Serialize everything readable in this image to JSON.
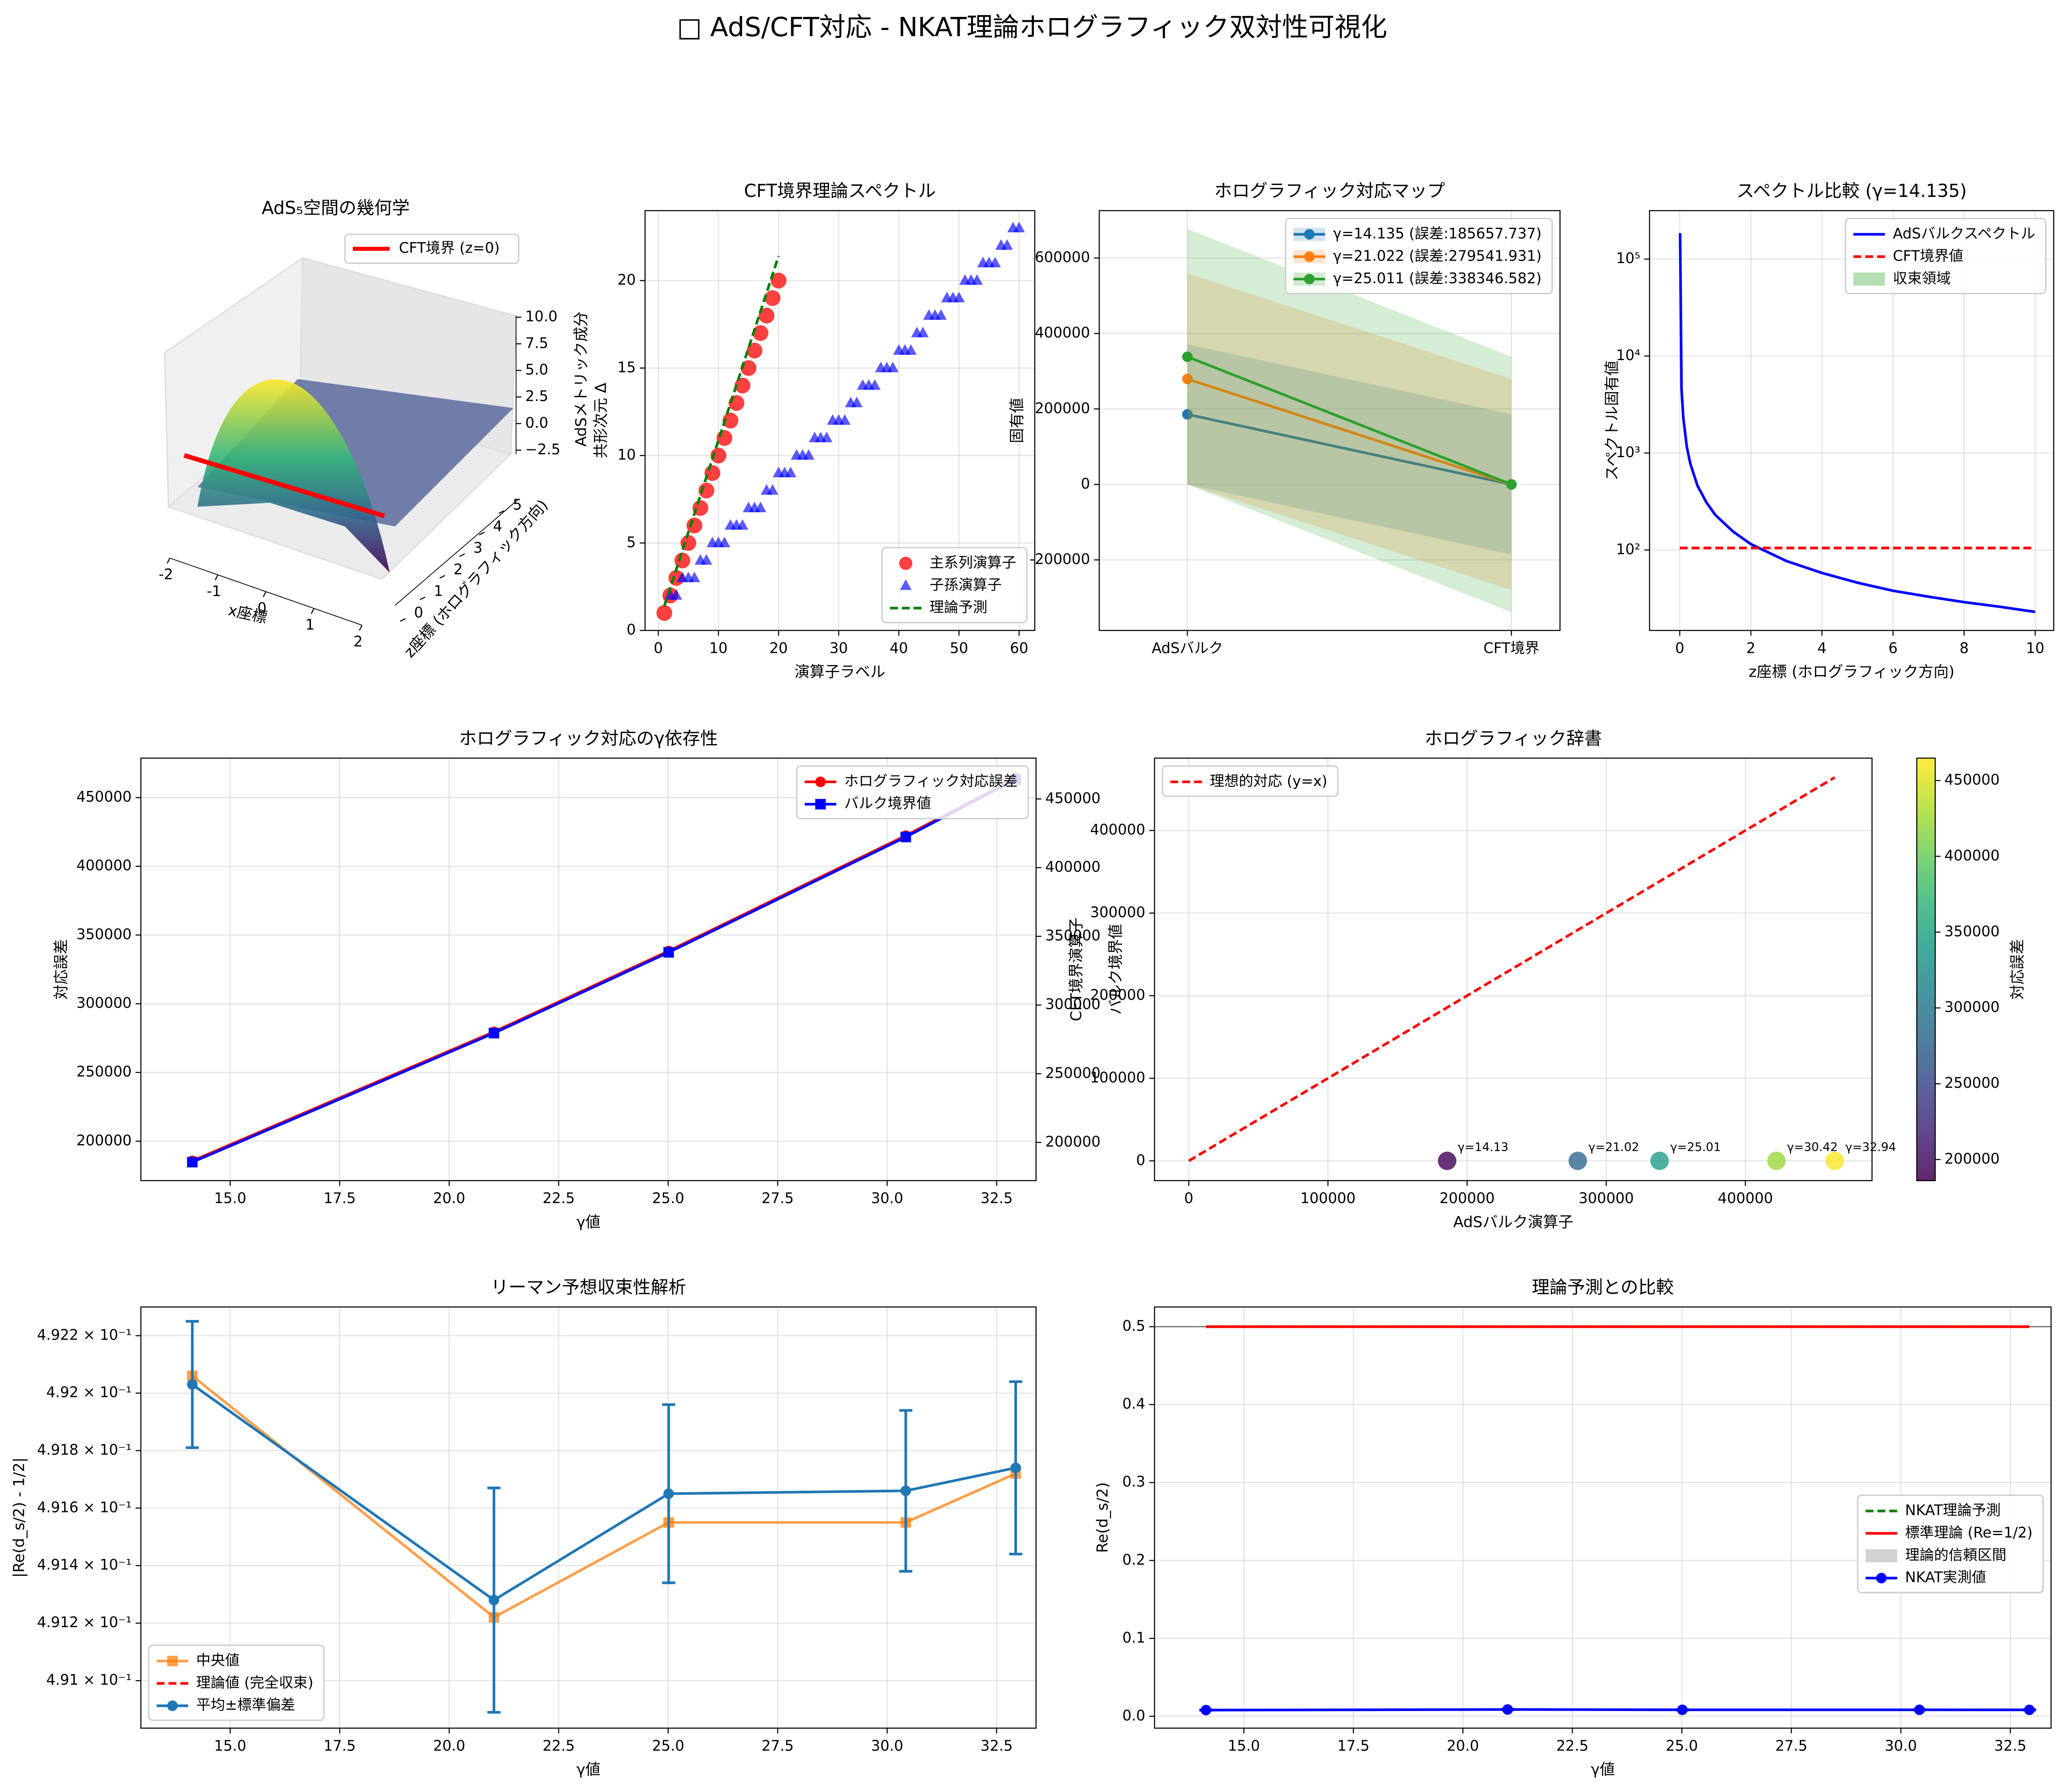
{
  "title": "□ AdS/CFT対応 - NKAT理論ホログラフィック双対性可視化",
  "chart_data": [
    {
      "type": "surface3d",
      "title": "AdS₅空間の幾何学",
      "xlabel": "x座標",
      "ylabel": "z座標 (ホログラフィック方向)",
      "zlabel": "AdSメトリック成分",
      "legend_label": "CFT境界 (z=0)",
      "xlim": [
        -2,
        2
      ],
      "xticks": [
        -2,
        -1,
        0,
        1,
        2
      ],
      "ylim": [
        0,
        5
      ],
      "yticks": [
        0,
        1,
        2,
        3,
        4,
        5
      ],
      "zlim": [
        -2.5,
        10
      ],
      "zticks": [
        {
          "value": -2.5,
          "label": "−2.5"
        },
        {
          "value": 0,
          "label": "0.0"
        },
        2.5,
        {
          "value": 5,
          "label": "5.0"
        },
        7.5,
        {
          "value": 10,
          "label": "10.0"
        }
      ]
    },
    {
      "type": "scatter",
      "title": "CFT境界理論スペクトル",
      "xlabel": "演算子ラベル",
      "ylabel": "共形次元 Δ",
      "xlim": [
        -2.2,
        62.6
      ],
      "xticks": [
        0,
        10,
        20,
        30,
        40,
        50,
        60
      ],
      "ylim": [
        0,
        24
      ],
      "yticks": [
        0,
        5,
        10,
        15,
        20
      ],
      "grid": true,
      "legend": "lower right",
      "series": [
        {
          "name": "主系列演算子",
          "color": "#ff0000",
          "marker": "o",
          "size": 6,
          "alpha": 0.75,
          "line": false,
          "x": [
            1,
            2,
            3,
            4,
            5,
            6,
            7,
            8,
            9,
            10,
            11,
            12,
            13,
            14,
            15,
            16,
            17,
            18,
            19,
            20
          ],
          "values": [
            1,
            2,
            3,
            4,
            5,
            6,
            7,
            8,
            9,
            10,
            11,
            12,
            13,
            14,
            15,
            16,
            17,
            18,
            19,
            20
          ]
        },
        {
          "name": "子孫演算子",
          "color": "#0000ff",
          "marker": "^",
          "size": 4,
          "alpha": 0.65,
          "line": false,
          "x": [
            2,
            3,
            4,
            5,
            6,
            7,
            8,
            9,
            10,
            11,
            12,
            13,
            14,
            15,
            16,
            17,
            18,
            19,
            20,
            21,
            22,
            23,
            24,
            25,
            26,
            27,
            28,
            29,
            30,
            31,
            32,
            33,
            34,
            35,
            36,
            37,
            38,
            39,
            40,
            41,
            42,
            43,
            44,
            45,
            46,
            47,
            48,
            49,
            50,
            51,
            52,
            53,
            54,
            55,
            56,
            57,
            58,
            59,
            60
          ],
          "values": [
            2,
            2,
            3,
            3,
            3,
            4,
            4,
            5,
            5,
            5,
            6,
            6,
            6,
            7,
            7,
            7,
            8,
            8,
            9,
            9,
            9,
            10,
            10,
            10,
            11,
            11,
            11,
            12,
            12,
            12,
            13,
            13,
            14,
            14,
            14,
            15,
            15,
            15,
            16,
            16,
            16,
            17,
            17,
            18,
            18,
            18,
            19,
            19,
            19,
            20,
            20,
            20,
            21,
            21,
            21,
            22,
            22,
            23,
            23
          ]
        },
        {
          "name": "理論予測",
          "color": "#008000",
          "style": "dashed",
          "x": [
            1,
            20
          ],
          "values": [
            1.4,
            21.4
          ]
        }
      ]
    },
    {
      "type": "line",
      "title": "ホログラフィック対応マップ",
      "ylabel": "固有値",
      "categories": [
        "AdSバルク",
        "CFT境界"
      ],
      "xlim": [
        -0.272,
        1.15
      ],
      "ylim": [
        -387000,
        725600
      ],
      "yticks": [
        -200000,
        0,
        200000,
        400000,
        600000
      ],
      "grid": true,
      "legend": "upper right",
      "series": [
        {
          "name": "γ=14.135 (誤差:185657.737)",
          "color": "#1f77b4",
          "marker": "o",
          "size": 4,
          "band": true,
          "values": [
            185657.737,
            0
          ],
          "errors": [
            185657.737,
            185657.737
          ]
        },
        {
          "name": "γ=21.022 (誤差:279541.931)",
          "color": "#ff7f0e",
          "marker": "o",
          "size": 4,
          "band": true,
          "values": [
            279541.931,
            0
          ],
          "errors": [
            279541.931,
            279541.931
          ]
        },
        {
          "name": "γ=25.011 (誤差:338346.582)",
          "color": "#2ca02c",
          "marker": "o",
          "size": 4,
          "band": true,
          "values": [
            338346.582,
            0
          ],
          "errors": [
            338346.582,
            338346.582
          ]
        }
      ]
    },
    {
      "type": "line",
      "title": "スペクトル比較 (γ=14.135)",
      "xlabel": "z座標 (ホログラフィック方向)",
      "ylabel": "スペクトル固有値",
      "xlim": [
        -0.85,
        10.52
      ],
      "xticks": [
        0,
        2,
        4,
        6,
        8,
        10
      ],
      "ylog": true,
      "ylim": [
        14.8,
        316000
      ],
      "yticks": [
        {
          "value": 100,
          "label": "10²"
        },
        {
          "value": 1000,
          "label": "10³"
        },
        {
          "value": 10000,
          "label": "10⁴"
        },
        {
          "value": 100000,
          "label": "10⁵"
        }
      ],
      "grid": true,
      "legend": "upper right",
      "series": [
        {
          "name": "AdSバルクスペクトル",
          "color": "#0000ff",
          "x": [
            0.01,
            0.05,
            0.1,
            0.2,
            0.3,
            0.5,
            0.75,
            1,
            1.5,
            2,
            3,
            4,
            5,
            6,
            7,
            8,
            9,
            10
          ],
          "values": [
            185000,
            4600,
            2300,
            1150,
            770,
            460,
            310,
            230,
            155,
            115,
            77,
            58,
            46,
            38,
            33,
            29,
            26,
            23
          ]
        },
        {
          "name": "CFT境界値",
          "color": "#ff0000",
          "style": "dashed",
          "x": [
            0,
            10
          ],
          "values": [
            105,
            105
          ]
        },
        {
          "name": "収束領域",
          "color": "#2ca02c",
          "patch": true
        }
      ]
    },
    {
      "type": "line",
      "title": "ホログラフィック対応のγ依存性",
      "xlabel": "γ値",
      "ylabel": "対応誤差",
      "ylabel_color": "#ff0000",
      "y2label": "バルク境界値",
      "y2label_color": "#0000ff",
      "x": [
        14.134725,
        21.02204,
        25.010858,
        30.424876,
        32.935062
      ],
      "xlim": [
        12.96,
        33.4
      ],
      "xticks": [
        {
          "value": 15,
          "label": "15.0"
        },
        17.5,
        {
          "value": 20,
          "label": "20.0"
        },
        22.5,
        {
          "value": 25,
          "label": "25.0"
        },
        27.5,
        {
          "value": 30,
          "label": "30.0"
        },
        32.5
      ],
      "ylim": [
        171300,
        478700
      ],
      "yticks": [
        200000,
        250000,
        300000,
        350000,
        400000,
        450000
      ],
      "y2lim": [
        172200,
        479700
      ],
      "y2ticks": [
        200000,
        250000,
        300000,
        350000,
        400000,
        450000
      ],
      "grid": true,
      "legend": "upper right",
      "series": [
        {
          "name": "ホログラフィック対応誤差",
          "color": "#ff0000",
          "marker": "o",
          "size": 4,
          "values": [
            185657.737,
            279541.931,
            338346.582,
            422300,
            464200
          ]
        },
        {
          "name": "バルク境界値",
          "color": "#0000ff",
          "marker": "s",
          "size": 4,
          "axis": "y2",
          "values": [
            185657.737,
            279541.931,
            338346.582,
            422300,
            464200
          ]
        }
      ]
    },
    {
      "type": "scatter",
      "title": "ホログラフィック辞書",
      "xlabel": "AdSバルク演算子",
      "ylabel": "CFT境界演算子",
      "xlim": [
        -24600,
        491000
      ],
      "xticks": [
        0,
        100000,
        200000,
        300000,
        400000
      ],
      "ylim": [
        -23900,
        487600
      ],
      "yticks": [
        0,
        100000,
        200000,
        300000,
        400000
      ],
      "grid": true,
      "legend": "upper left",
      "colorbar": {
        "label": "対応誤差",
        "cmap": "viridis",
        "lim": [
          186100,
          464750
        ],
        "ticks": [
          200000,
          250000,
          300000,
          350000,
          400000,
          450000
        ]
      },
      "series": [
        {
          "name": "理想的対応 (y=x)",
          "color": "#ff0000",
          "style": "dashed",
          "x": [
            0,
            464200
          ],
          "values": [
            0,
            464200
          ]
        },
        {
          "marker": "o",
          "size": 7,
          "alpha": 0.8,
          "line": false,
          "x": [
            185657.737,
            279541.931,
            338346.582,
            422300,
            464200
          ],
          "values": [
            0,
            0,
            0,
            0,
            0
          ],
          "color_values": [
            185657.737,
            279541.931,
            338346.582,
            422300,
            464200
          ],
          "annotations": [
            "γ=14.13",
            "γ=21.02",
            "γ=25.01",
            "γ=30.42",
            "γ=32.94"
          ]
        }
      ]
    },
    {
      "type": "line",
      "title": "リーマン予想収束性解析",
      "xlabel": "γ値",
      "ylabel": "|Re(d_s/2) - 1/2|",
      "x": [
        14.134725,
        21.02204,
        25.010858,
        30.424876,
        32.935062
      ],
      "xlim": [
        12.96,
        33.4
      ],
      "xticks": [
        {
          "value": 15,
          "label": "15.0"
        },
        17.5,
        {
          "value": 20,
          "label": "20.0"
        },
        22.5,
        {
          "value": 25,
          "label": "25.0"
        },
        27.5,
        {
          "value": 30,
          "label": "30.0"
        },
        32.5
      ],
      "ylog": true,
      "ylim": [
        0.490835,
        0.4923
      ],
      "yticks": [
        {
          "value": 0.491,
          "label": "4.91 × 10⁻¹"
        },
        {
          "value": 0.4912,
          "label": "4.912 × 10⁻¹"
        },
        {
          "value": 0.4914,
          "label": "4.914 × 10⁻¹"
        },
        {
          "value": 0.4916,
          "label": "4.916 × 10⁻¹"
        },
        {
          "value": 0.4918,
          "label": "4.918 × 10⁻¹"
        },
        {
          "value": 0.492,
          "label": "4.92 × 10⁻¹"
        },
        {
          "value": 0.4922,
          "label": "4.922 × 10⁻¹"
        }
      ],
      "grid": true,
      "legend": "lower left",
      "series": [
        {
          "name": "中央値",
          "color": "#ff7f0e",
          "marker": "s",
          "size": 4,
          "alpha": 0.75,
          "values": [
            0.49206,
            0.49122,
            0.49155,
            0.49155,
            0.49172
          ]
        },
        {
          "name": "理論値 (完全収束)",
          "color": "#ff0000",
          "style": "dashed"
        },
        {
          "name": "平均±標準偏差",
          "color": "#1f77b4",
          "marker": "o",
          "size": 4,
          "values": [
            0.49203,
            0.49128,
            0.49165,
            0.49166,
            0.49174
          ],
          "errors": [
            0.00022,
            0.00039,
            0.00031,
            0.00028,
            0.0003
          ]
        }
      ]
    },
    {
      "type": "line",
      "title": "理論予測との比較",
      "xlabel": "γ値",
      "ylabel": "Re(d_s/2)",
      "x": [
        14.134725,
        21.02204,
        25.010858,
        30.424876,
        32.935062
      ],
      "xlim": [
        12.96,
        33.43
      ],
      "xticks": [
        {
          "value": 15,
          "label": "15.0"
        },
        17.5,
        {
          "value": 20,
          "label": "20.0"
        },
        22.5,
        {
          "value": 25,
          "label": "25.0"
        },
        27.5,
        {
          "value": 30,
          "label": "30.0"
        },
        32.5
      ],
      "ylim": [
        -0.0152,
        0.5253
      ],
      "yticks": [
        {
          "value": 0,
          "label": "0.0"
        },
        0.1,
        0.2,
        0.3,
        0.4,
        0.5
      ],
      "grid": true,
      "legend": "center right",
      "hline": 0.5,
      "series": [
        {
          "name": "NKAT理論予測",
          "color": "#008000",
          "style": "dashed",
          "values": [
            0.5,
            0.5,
            0.5,
            0.5,
            0.5
          ]
        },
        {
          "name": "標準理論 (Re=1/2)",
          "color": "#ff0000",
          "values": [
            0.5,
            0.5,
            0.5,
            0.5,
            0.5
          ]
        },
        {
          "name": "理論的信頼区間",
          "color": "#808080",
          "patch": true
        },
        {
          "name": "NKAT実測値",
          "color": "#0000ff",
          "marker": "o",
          "size": 4,
          "values": [
            0.00797,
            0.00872,
            0.00835,
            0.00834,
            0.00826
          ],
          "errors": [
            0.0002,
            0.0004,
            0.0003,
            0.0003,
            0.0003
          ]
        }
      ]
    }
  ]
}
